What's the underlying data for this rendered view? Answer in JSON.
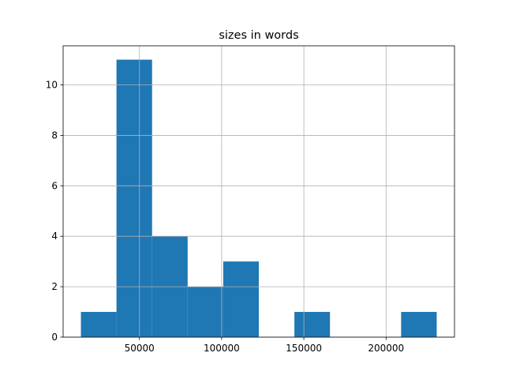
{
  "chart_data": {
    "type": "histogram",
    "title": "sizes in words",
    "bins": [
      14400,
      36040,
      57680,
      79320,
      100960,
      122600,
      144240,
      165880,
      187520,
      209160,
      230800
    ],
    "values": [
      1,
      11,
      4,
      2,
      3,
      0,
      1,
      0,
      0,
      1
    ],
    "color": "#1f77b4",
    "xlim": [
      3580,
      241620
    ],
    "xticks": [
      50000,
      100000,
      150000,
      200000
    ],
    "ylim": [
      0,
      11.55
    ],
    "yticks": [
      0,
      2,
      4,
      6,
      8,
      10
    ],
    "grid": true
  }
}
